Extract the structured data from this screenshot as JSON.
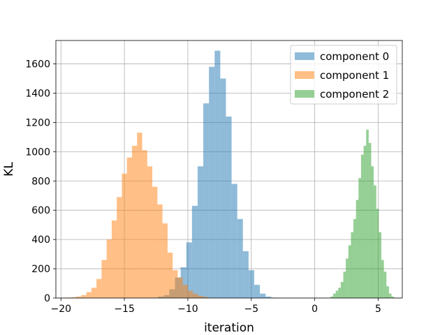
{
  "chart_data": {
    "type": "bar",
    "title": "",
    "xlabel": "iteration",
    "ylabel": "KL",
    "xlim": [
      -20.4,
      6.9
    ],
    "ylim": [
      0,
      1760
    ],
    "xticks": [
      -20,
      -15,
      -10,
      -5,
      0,
      5
    ],
    "xtick_labels": [
      "−20",
      "−15",
      "−10",
      "−5",
      "0",
      "5"
    ],
    "yticks": [
      0,
      200,
      400,
      600,
      800,
      1000,
      1200,
      1400,
      1600
    ],
    "ytick_labels": [
      "0",
      "200",
      "400",
      "600",
      "800",
      "1000",
      "1200",
      "1400",
      "1600"
    ],
    "grid": true,
    "legend_position": "top-right",
    "bar_alpha": 0.5,
    "series": [
      {
        "name": "component 0",
        "color": "#1f77b4",
        "x_start": -12.35,
        "bin_width": 0.446,
        "values": [
          10,
          20,
          60,
          140,
          210,
          380,
          630,
          900,
          1330,
          1580,
          1690,
          1500,
          1240,
          780,
          540,
          320,
          190,
          90,
          30,
          10,
          3
        ]
      },
      {
        "name": "component 1",
        "color": "#ff7f0e",
        "x_start": -19.6,
        "bin_width": 0.4,
        "values": [
          3,
          5,
          10,
          20,
          40,
          70,
          130,
          260,
          400,
          530,
          690,
          850,
          960,
          1040,
          1130,
          1010,
          900,
          760,
          640,
          510,
          310,
          190,
          140,
          90,
          50,
          30,
          15,
          8
        ]
      },
      {
        "name": "component 2",
        "color": "#2ca02c",
        "x_start": 1.25,
        "bin_width": 0.2,
        "values": [
          10,
          30,
          50,
          70,
          110,
          180,
          270,
          360,
          450,
          540,
          670,
          820,
          980,
          1040,
          1150,
          1060,
          900,
          770,
          610,
          450,
          260,
          180,
          80,
          30,
          10
        ]
      }
    ]
  }
}
